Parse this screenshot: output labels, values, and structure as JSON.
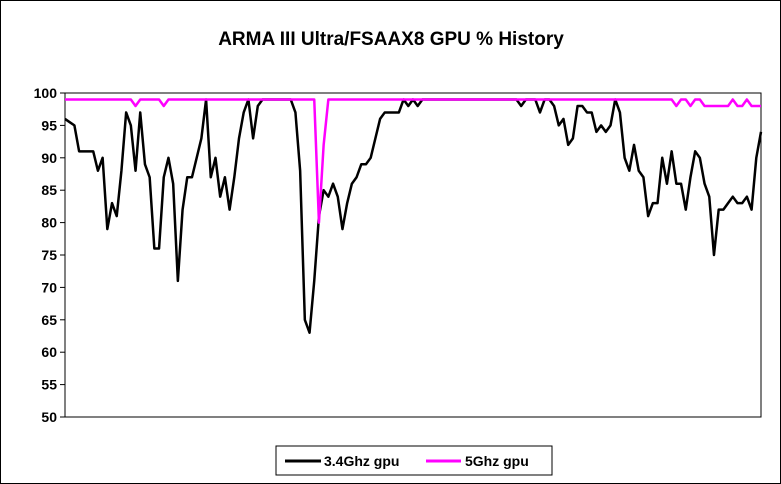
{
  "chart_data": {
    "type": "line",
    "title": "ARMA III Ultra/FSAAX8 GPU % History",
    "xlabel": "",
    "ylabel": "",
    "ylim": [
      50,
      100
    ],
    "yticks": [
      50,
      55,
      60,
      65,
      70,
      75,
      80,
      85,
      90,
      95,
      100
    ],
    "grid": false,
    "legend_position": "bottom",
    "series": [
      {
        "name": "3.4Ghz gpu",
        "color": "#000000",
        "values": [
          96,
          95.5,
          95,
          91,
          91,
          91,
          91,
          88,
          90,
          79,
          83,
          81,
          88,
          97,
          95,
          88,
          97,
          89,
          87,
          76,
          76,
          87,
          90,
          86,
          71,
          82,
          87,
          87,
          90,
          93,
          99,
          87,
          90,
          84,
          87,
          82,
          87,
          93,
          97,
          99,
          93,
          98,
          99,
          99,
          99,
          99,
          99,
          99,
          99,
          97,
          88,
          65,
          63,
          71,
          81,
          85,
          84,
          86,
          84,
          79,
          83,
          86,
          87,
          89,
          89,
          90,
          93,
          96,
          97,
          97,
          97,
          97,
          99,
          98,
          99,
          98,
          99,
          99,
          99,
          99,
          99,
          99,
          99,
          99,
          99,
          99,
          99,
          99,
          99,
          99,
          99,
          99,
          99,
          99,
          99,
          99,
          99,
          98,
          99,
          99,
          99,
          97,
          99,
          99,
          98,
          95,
          96,
          92,
          93,
          98,
          98,
          97,
          97,
          94,
          95,
          94,
          95,
          99,
          97,
          90,
          88,
          92,
          88,
          87,
          81,
          83,
          83,
          90,
          86,
          91,
          86,
          86,
          82,
          87,
          91,
          90,
          86,
          84,
          75,
          82,
          82,
          83,
          84,
          83,
          83,
          84,
          82,
          90,
          94
        ]
      },
      {
        "name": "5Ghz gpu",
        "color": "#ff00ff",
        "values": [
          99,
          99,
          99,
          99,
          99,
          99,
          99,
          99,
          99,
          99,
          99,
          99,
          99,
          99,
          99,
          98,
          99,
          99,
          99,
          99,
          99,
          98,
          99,
          99,
          99,
          99,
          99,
          99,
          99,
          99,
          99,
          99,
          99,
          99,
          99,
          99,
          99,
          99,
          99,
          99,
          99,
          99,
          99,
          99,
          99,
          99,
          99,
          99,
          99,
          99,
          99,
          99,
          99,
          99,
          80,
          92,
          99,
          99,
          99,
          99,
          99,
          99,
          99,
          99,
          99,
          99,
          99,
          99,
          99,
          99,
          99,
          99,
          99,
          99,
          99,
          99,
          99,
          99,
          99,
          99,
          99,
          99,
          99,
          99,
          99,
          99,
          99,
          99,
          99,
          99,
          99,
          99,
          99,
          99,
          99,
          99,
          99,
          99,
          99,
          99,
          99,
          99,
          99,
          99,
          99,
          99,
          99,
          99,
          99,
          99,
          99,
          99,
          99,
          99,
          99,
          99,
          99,
          99,
          99,
          99,
          99,
          99,
          99,
          99,
          99,
          99,
          99,
          99,
          99,
          99,
          98,
          99,
          99,
          98,
          99,
          99,
          98,
          98,
          98,
          98,
          98,
          98,
          99,
          98,
          98,
          99,
          98,
          98,
          98
        ]
      }
    ]
  }
}
